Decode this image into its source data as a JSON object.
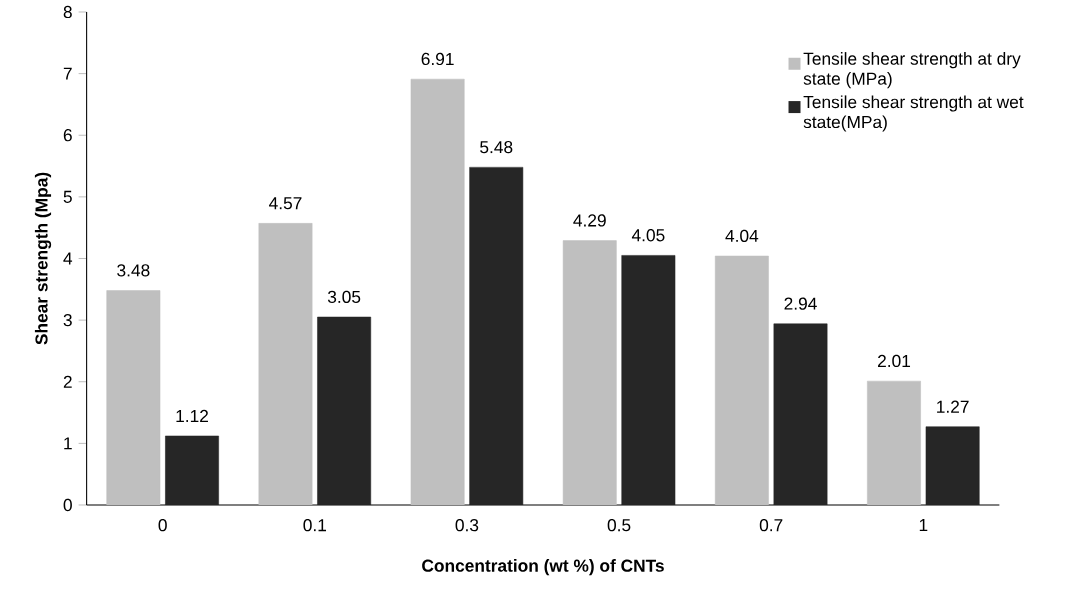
{
  "chart_data": {
    "type": "bar",
    "xlabel": "Concentration (wt %) of CNTs",
    "ylabel": "Shear strength (Mpa)",
    "categories": [
      "0",
      "0.1",
      "0.3",
      "0.5",
      "0.7",
      "1"
    ],
    "series": [
      {
        "name": "Tensile shear strength at dry state (MPa)",
        "color": "#bfbfbf",
        "values": [
          3.48,
          4.57,
          6.91,
          4.29,
          4.04,
          2.01
        ]
      },
      {
        "name": "Tensile shear strength at wet state(MPa)",
        "color": "#262626",
        "values": [
          1.12,
          3.05,
          5.48,
          4.05,
          2.94,
          1.27
        ]
      }
    ],
    "ylim": [
      0,
      8
    ],
    "yticks": [
      0,
      1,
      2,
      3,
      4,
      5,
      6,
      7,
      8
    ],
    "data_labels": true,
    "legend": "top right",
    "grid": false
  }
}
